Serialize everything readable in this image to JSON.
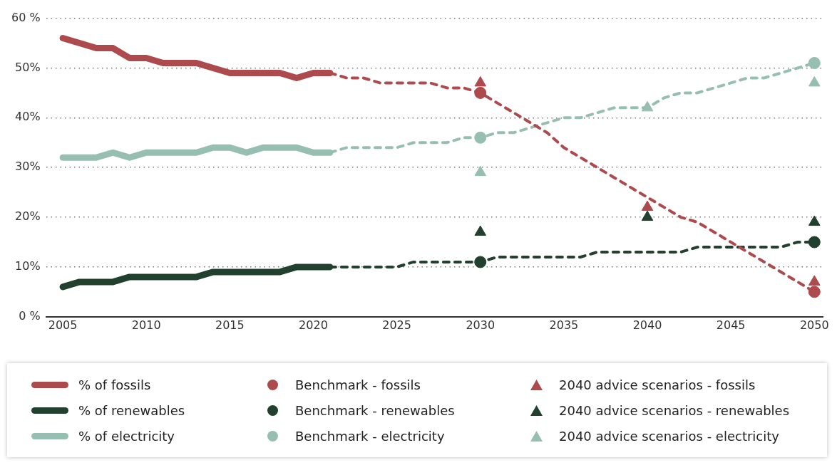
{
  "chart_data": {
    "type": "line",
    "xlim": [
      2004,
      2050.5
    ],
    "xticks": [
      2005,
      2010,
      2015,
      2020,
      2025,
      2030,
      2035,
      2040,
      2045,
      2050
    ],
    "ylim": [
      0,
      60
    ],
    "yticks": [
      {
        "value": 0,
        "label": "0 %"
      },
      {
        "value": 10,
        "label": "10%"
      },
      {
        "value": 20,
        "label": "20%"
      },
      {
        "value": 30,
        "label": "30%"
      },
      {
        "value": 40,
        "label": "40%"
      },
      {
        "value": 50,
        "label": "50%"
      },
      {
        "value": 60,
        "label": "60 %"
      }
    ],
    "grid": "y",
    "legend": "bottom",
    "series": [
      {
        "name": "% of fossils",
        "type": "line",
        "color": "#ad4a4d",
        "marker": "none",
        "line_style": "solid",
        "x": [
          2005,
          2006,
          2007,
          2008,
          2009,
          2010,
          2011,
          2012,
          2013,
          2014,
          2015,
          2016,
          2017,
          2018,
          2019,
          2020,
          2021
        ],
        "values": [
          56,
          55,
          54,
          54,
          52,
          52,
          51,
          51,
          51,
          50,
          49,
          49,
          49,
          49,
          48,
          49,
          49
        ]
      },
      {
        "name": "% of renewables",
        "type": "line",
        "color": "#22402e",
        "marker": "none",
        "line_style": "solid",
        "x": [
          2005,
          2006,
          2007,
          2008,
          2009,
          2010,
          2011,
          2012,
          2013,
          2014,
          2015,
          2016,
          2017,
          2018,
          2019,
          2020,
          2021
        ],
        "values": [
          6,
          7,
          7,
          7,
          8,
          8,
          8,
          8,
          8,
          9,
          9,
          9,
          9,
          9,
          10,
          10,
          10
        ]
      },
      {
        "name": "% of electricity",
        "type": "line",
        "color": "#96bfb1",
        "marker": "none",
        "line_style": "solid",
        "x": [
          2005,
          2006,
          2007,
          2008,
          2009,
          2010,
          2011,
          2012,
          2013,
          2014,
          2015,
          2016,
          2017,
          2018,
          2019,
          2020,
          2021
        ],
        "values": [
          32,
          32,
          32,
          33,
          32,
          33,
          33,
          33,
          33,
          34,
          34,
          33,
          34,
          34,
          34,
          33,
          33
        ]
      },
      {
        "type": "line",
        "color": "#ad4a4d",
        "marker": "none",
        "line_style": "dashed",
        "x": [
          2021,
          2022,
          2023,
          2024,
          2025,
          2026,
          2027,
          2028,
          2029,
          2030,
          2031,
          2032,
          2033,
          2034,
          2035,
          2036,
          2037,
          2038,
          2039,
          2040,
          2041,
          2042,
          2043,
          2044,
          2045,
          2046,
          2047,
          2048,
          2049,
          2050
        ],
        "values": [
          49,
          48,
          48,
          47,
          47,
          47,
          47,
          46,
          46,
          45,
          43,
          41,
          39,
          37,
          34,
          32,
          30,
          28,
          26,
          24,
          22,
          20,
          19,
          17,
          15,
          13,
          11,
          9,
          7,
          5
        ]
      },
      {
        "type": "line",
        "color": "#22402e",
        "marker": "none",
        "line_style": "dashed",
        "x": [
          2021,
          2022,
          2023,
          2024,
          2025,
          2026,
          2027,
          2028,
          2029,
          2030,
          2031,
          2032,
          2033,
          2034,
          2035,
          2036,
          2037,
          2038,
          2039,
          2040,
          2041,
          2042,
          2043,
          2044,
          2045,
          2046,
          2047,
          2048,
          2049,
          2050
        ],
        "values": [
          10,
          10,
          10,
          10,
          10,
          11,
          11,
          11,
          11,
          11,
          12,
          12,
          12,
          12,
          12,
          12,
          13,
          13,
          13,
          13,
          13,
          13,
          14,
          14,
          14,
          14,
          14,
          14,
          15,
          15
        ]
      },
      {
        "type": "line",
        "color": "#96bfb1",
        "marker": "none",
        "line_style": "dashed",
        "x": [
          2021,
          2022,
          2023,
          2024,
          2025,
          2026,
          2027,
          2028,
          2029,
          2030,
          2031,
          2032,
          2033,
          2034,
          2035,
          2036,
          2037,
          2038,
          2039,
          2040,
          2041,
          2042,
          2043,
          2044,
          2045,
          2046,
          2047,
          2048,
          2049,
          2050
        ],
        "values": [
          33,
          34,
          34,
          34,
          34,
          35,
          35,
          35,
          36,
          36,
          37,
          37,
          38,
          39,
          40,
          40,
          41,
          42,
          42,
          42,
          44,
          45,
          45,
          46,
          47,
          48,
          48,
          49,
          50,
          51
        ]
      },
      {
        "name": "Benchmark - fossils",
        "type": "scatter",
        "color": "#ad4a4d",
        "marker": "circle",
        "x": [
          2030,
          2050
        ],
        "values": [
          45,
          5
        ]
      },
      {
        "name": "Benchmark - renewables",
        "type": "scatter",
        "color": "#22402e",
        "marker": "circle",
        "x": [
          2030,
          2050
        ],
        "values": [
          11,
          15
        ]
      },
      {
        "name": "Benchmark - electricity",
        "type": "scatter",
        "color": "#96bfb1",
        "marker": "circle",
        "x": [
          2030,
          2050
        ],
        "values": [
          36,
          51
        ]
      },
      {
        "name": "2040 advice scenarios - fossils",
        "type": "scatter",
        "color": "#ad4a4d",
        "marker": "triangle",
        "x": [
          2030,
          2040,
          2050
        ],
        "values": [
          47,
          22,
          7
        ]
      },
      {
        "name": "2040 advice scenarios - renewables",
        "type": "scatter",
        "color": "#22402e",
        "marker": "triangle",
        "x": [
          2030,
          2040,
          2050
        ],
        "values": [
          17,
          20,
          19
        ]
      },
      {
        "name": "2040 advice scenarios - electricity",
        "type": "scatter",
        "color": "#96bfb1",
        "marker": "triangle",
        "x": [
          2030,
          2040,
          2050
        ],
        "values": [
          29,
          42,
          47
        ]
      }
    ]
  }
}
